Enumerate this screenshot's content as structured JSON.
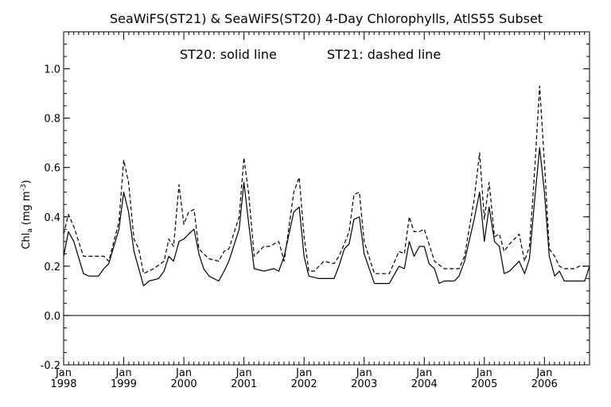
{
  "chart_data": {
    "type": "line",
    "title": "SeaWiFS(ST21) & SeaWiFS(ST20) 4-Day Chlorophylls, AtlS55 Subset",
    "annotation_left": "ST20: solid line",
    "annotation_right": "ST21: dashed line",
    "ylabel_main": "Chl",
    "ylabel_sub": "a",
    "ylabel_units": "(mg m",
    "ylabel_sup": "-3",
    "ylabel_close": ")",
    "xlim": [
      1998.0,
      2006.75
    ],
    "ylim": [
      -0.2,
      1.15
    ],
    "grid": false,
    "zero_line": 0.0,
    "x_tick_values": [
      1998,
      1999,
      2000,
      2001,
      2002,
      2003,
      2004,
      2005,
      2006
    ],
    "x_tick_month": "Jan",
    "x_tick_labels": [
      "1998",
      "1999",
      "2000",
      "2001",
      "2002",
      "2003",
      "2004",
      "2005",
      "2006"
    ],
    "y_tick_values": [
      -0.2,
      0.0,
      0.2,
      0.4,
      0.6,
      0.8,
      1.0
    ],
    "y_tick_labels": [
      "-0.2",
      "0.0",
      "0.2",
      "0.4",
      "0.6",
      "0.8",
      "1.0"
    ],
    "series": [
      {
        "name": "ST20",
        "style": "solid",
        "color": "#000000",
        "points": [
          [
            1998.0,
            0.24
          ],
          [
            1998.08,
            0.34
          ],
          [
            1998.17,
            0.3
          ],
          [
            1998.33,
            0.17
          ],
          [
            1998.42,
            0.16
          ],
          [
            1998.58,
            0.16
          ],
          [
            1998.67,
            0.19
          ],
          [
            1998.75,
            0.21
          ],
          [
            1998.92,
            0.35
          ],
          [
            1999.0,
            0.5
          ],
          [
            1999.08,
            0.42
          ],
          [
            1999.17,
            0.26
          ],
          [
            1999.33,
            0.12
          ],
          [
            1999.42,
            0.14
          ],
          [
            1999.58,
            0.15
          ],
          [
            1999.67,
            0.18
          ],
          [
            1999.75,
            0.24
          ],
          [
            1999.83,
            0.22
          ],
          [
            1999.92,
            0.3
          ],
          [
            2000.0,
            0.31
          ],
          [
            2000.08,
            0.33
          ],
          [
            2000.17,
            0.35
          ],
          [
            2000.25,
            0.25
          ],
          [
            2000.33,
            0.19
          ],
          [
            2000.42,
            0.16
          ],
          [
            2000.58,
            0.14
          ],
          [
            2000.67,
            0.18
          ],
          [
            2000.75,
            0.22
          ],
          [
            2000.92,
            0.35
          ],
          [
            2001.0,
            0.54
          ],
          [
            2001.08,
            0.37
          ],
          [
            2001.17,
            0.19
          ],
          [
            2001.33,
            0.18
          ],
          [
            2001.5,
            0.19
          ],
          [
            2001.58,
            0.18
          ],
          [
            2001.67,
            0.24
          ],
          [
            2001.83,
            0.42
          ],
          [
            2001.92,
            0.44
          ],
          [
            2002.0,
            0.24
          ],
          [
            2002.08,
            0.16
          ],
          [
            2002.25,
            0.15
          ],
          [
            2002.5,
            0.15
          ],
          [
            2002.58,
            0.2
          ],
          [
            2002.67,
            0.27
          ],
          [
            2002.75,
            0.29
          ],
          [
            2002.83,
            0.39
          ],
          [
            2002.92,
            0.4
          ],
          [
            2003.0,
            0.25
          ],
          [
            2003.17,
            0.13
          ],
          [
            2003.33,
            0.13
          ],
          [
            2003.42,
            0.13
          ],
          [
            2003.58,
            0.2
          ],
          [
            2003.67,
            0.19
          ],
          [
            2003.75,
            0.3
          ],
          [
            2003.83,
            0.24
          ],
          [
            2003.92,
            0.28
          ],
          [
            2004.0,
            0.28
          ],
          [
            2004.08,
            0.21
          ],
          [
            2004.17,
            0.19
          ],
          [
            2004.25,
            0.13
          ],
          [
            2004.33,
            0.14
          ],
          [
            2004.5,
            0.14
          ],
          [
            2004.58,
            0.16
          ],
          [
            2004.67,
            0.22
          ],
          [
            2004.83,
            0.39
          ],
          [
            2004.92,
            0.5
          ],
          [
            2005.0,
            0.3
          ],
          [
            2005.08,
            0.44
          ],
          [
            2005.17,
            0.3
          ],
          [
            2005.25,
            0.28
          ],
          [
            2005.33,
            0.17
          ],
          [
            2005.42,
            0.18
          ],
          [
            2005.58,
            0.22
          ],
          [
            2005.67,
            0.17
          ],
          [
            2005.75,
            0.23
          ],
          [
            2005.83,
            0.45
          ],
          [
            2005.92,
            0.68
          ],
          [
            2006.0,
            0.5
          ],
          [
            2006.08,
            0.24
          ],
          [
            2006.17,
            0.16
          ],
          [
            2006.25,
            0.18
          ],
          [
            2006.33,
            0.14
          ],
          [
            2006.5,
            0.14
          ],
          [
            2006.58,
            0.14
          ],
          [
            2006.67,
            0.14
          ],
          [
            2006.75,
            0.2
          ]
        ]
      },
      {
        "name": "ST21",
        "style": "dashed",
        "color": "#000000",
        "points": [
          [
            1998.0,
            0.33
          ],
          [
            1998.08,
            0.41
          ],
          [
            1998.17,
            0.36
          ],
          [
            1998.33,
            0.24
          ],
          [
            1998.5,
            0.24
          ],
          [
            1998.67,
            0.24
          ],
          [
            1998.75,
            0.22
          ],
          [
            1998.92,
            0.38
          ],
          [
            1999.0,
            0.63
          ],
          [
            1999.08,
            0.54
          ],
          [
            1999.17,
            0.31
          ],
          [
            1999.25,
            0.27
          ],
          [
            1999.33,
            0.17
          ],
          [
            1999.5,
            0.19
          ],
          [
            1999.67,
            0.22
          ],
          [
            1999.75,
            0.31
          ],
          [
            1999.83,
            0.28
          ],
          [
            1999.92,
            0.53
          ],
          [
            2000.0,
            0.37
          ],
          [
            2000.08,
            0.42
          ],
          [
            2000.17,
            0.43
          ],
          [
            2000.25,
            0.27
          ],
          [
            2000.33,
            0.25
          ],
          [
            2000.42,
            0.23
          ],
          [
            2000.58,
            0.22
          ],
          [
            2000.67,
            0.26
          ],
          [
            2000.75,
            0.27
          ],
          [
            2000.92,
            0.4
          ],
          [
            2001.0,
            0.64
          ],
          [
            2001.08,
            0.49
          ],
          [
            2001.17,
            0.24
          ],
          [
            2001.33,
            0.28
          ],
          [
            2001.42,
            0.28
          ],
          [
            2001.58,
            0.3
          ],
          [
            2001.67,
            0.22
          ],
          [
            2001.83,
            0.5
          ],
          [
            2001.92,
            0.56
          ],
          [
            2002.0,
            0.32
          ],
          [
            2002.08,
            0.18
          ],
          [
            2002.17,
            0.18
          ],
          [
            2002.33,
            0.22
          ],
          [
            2002.5,
            0.21
          ],
          [
            2002.58,
            0.24
          ],
          [
            2002.67,
            0.29
          ],
          [
            2002.75,
            0.34
          ],
          [
            2002.83,
            0.49
          ],
          [
            2002.92,
            0.5
          ],
          [
            2003.0,
            0.3
          ],
          [
            2003.17,
            0.17
          ],
          [
            2003.33,
            0.17
          ],
          [
            2003.42,
            0.17
          ],
          [
            2003.58,
            0.26
          ],
          [
            2003.67,
            0.25
          ],
          [
            2003.75,
            0.4
          ],
          [
            2003.83,
            0.34
          ],
          [
            2003.92,
            0.34
          ],
          [
            2004.0,
            0.35
          ],
          [
            2004.08,
            0.29
          ],
          [
            2004.17,
            0.22
          ],
          [
            2004.33,
            0.19
          ],
          [
            2004.5,
            0.19
          ],
          [
            2004.58,
            0.19
          ],
          [
            2004.67,
            0.24
          ],
          [
            2004.83,
            0.47
          ],
          [
            2004.92,
            0.66
          ],
          [
            2005.0,
            0.39
          ],
          [
            2005.08,
            0.54
          ],
          [
            2005.17,
            0.32
          ],
          [
            2005.25,
            0.33
          ],
          [
            2005.33,
            0.26
          ],
          [
            2005.42,
            0.29
          ],
          [
            2005.58,
            0.33
          ],
          [
            2005.67,
            0.22
          ],
          [
            2005.75,
            0.28
          ],
          [
            2005.83,
            0.56
          ],
          [
            2005.92,
            0.93
          ],
          [
            2006.0,
            0.62
          ],
          [
            2006.08,
            0.27
          ],
          [
            2006.17,
            0.24
          ],
          [
            2006.25,
            0.2
          ],
          [
            2006.33,
            0.19
          ],
          [
            2006.5,
            0.19
          ],
          [
            2006.58,
            0.2
          ],
          [
            2006.67,
            0.2
          ],
          [
            2006.75,
            0.2
          ]
        ]
      }
    ]
  }
}
